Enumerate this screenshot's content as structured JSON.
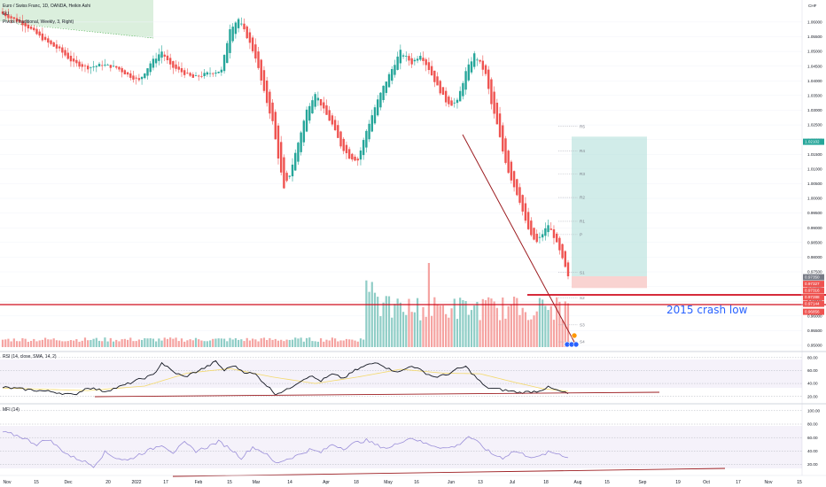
{
  "header": {
    "symbol_line": "Euro / Swiss Franc, 1D, OANDA, Heikin Ashi",
    "indicator_line": "Pivots (Traditional, Weekly, 3, Right)",
    "currency": "CHF",
    "corner_mark": "EU"
  },
  "annotation": "2015 crash low",
  "rsi_title": "RSI (14, close, SMA, 14, 2)",
  "mfi_title": "MFI (14)",
  "colors": {
    "up": "#26a69a",
    "down": "#ef5350",
    "vol_up": "#8fcdc6",
    "vol_down": "#f5a3a1",
    "rsi_line": "#131722",
    "rsi_ma": "#f4d96b",
    "mfi_line": "#9b8fd9",
    "trendline": "#9c1c20",
    "hline": "#d10d1f",
    "annotation": "#2962ff"
  },
  "chart_data": [
    {
      "type": "candlestick",
      "y_axis_ticks": [
        "1.06000",
        "1.05500",
        "1.05000",
        "1.04500",
        "1.04000",
        "1.03500",
        "1.03000",
        "1.02500",
        "1.02000",
        "1.01500",
        "1.01000",
        "1.00500",
        "1.00000",
        "0.99500",
        "0.99000",
        "0.98500",
        "0.98000",
        "0.97500",
        "0.97000",
        "0.96500",
        "0.96000",
        "0.95500",
        "0.95000"
      ],
      "ylim": [
        0.9494,
        1.0675
      ],
      "x_axis_ticks": [
        "Nov",
        "15",
        "Dec",
        "20",
        "2022",
        "17",
        "Feb",
        "15",
        "Mar",
        "14",
        "Apr",
        "18",
        "May",
        "16",
        "Jun",
        "13",
        "Jul",
        "18",
        "Aug",
        "15",
        "Sep",
        "19",
        "Oct",
        "17",
        "Nov",
        "15"
      ],
      "price_tags": [
        {
          "text": "1.02102",
          "value": 1.02102,
          "color": "#26a69a"
        },
        {
          "text": "0.97350",
          "value": 0.9735,
          "color": "#787b86"
        },
        {
          "text": "0.97327",
          "value": 0.97327,
          "color": "#ef5350"
        },
        {
          "text": "0.97316",
          "value": 0.97316,
          "color": "#ef5350"
        },
        {
          "text": "0.97288",
          "value": 0.97288,
          "color": "#ef5350"
        },
        {
          "text": "0.97144",
          "value": 0.97144,
          "color": "#ef5350"
        },
        {
          "text": "0.96856",
          "value": 0.96856,
          "color": "#ef5350"
        }
      ],
      "pivots": [
        {
          "name": "R5",
          "value": 1.0245
        },
        {
          "name": "R4",
          "value": 1.0162
        },
        {
          "name": "R3",
          "value": 1.0083
        },
        {
          "name": "R2",
          "value": 1.0003
        },
        {
          "name": "R1",
          "value": 0.9922
        },
        {
          "name": "P",
          "value": 0.9877
        },
        {
          "name": "S1",
          "value": 0.9748
        },
        {
          "name": "S2",
          "value": 0.9662
        },
        {
          "name": "S3",
          "value": 0.957
        },
        {
          "name": "S4",
          "value": 0.9512
        }
      ],
      "annotations": [
        "2015 crash low"
      ],
      "waypoints": [
        [
          0,
          1.0628
        ],
        [
          8,
          1.059
        ],
        [
          15,
          1.0535
        ],
        [
          20,
          1.0505
        ],
        [
          25,
          1.046
        ],
        [
          30,
          1.0445
        ],
        [
          35,
          1.0455
        ],
        [
          40,
          1.0445
        ],
        [
          44,
          1.042
        ],
        [
          48,
          1.04
        ],
        [
          52,
          1.046
        ],
        [
          56,
          1.05
        ],
        [
          59,
          1.045
        ],
        [
          63,
          1.043
        ],
        [
          67,
          1.041
        ],
        [
          72,
          1.0425
        ],
        [
          77,
          1.0435
        ],
        [
          80,
          1.058
        ],
        [
          83,
          1.061
        ],
        [
          86,
          1.055
        ],
        [
          89,
          1.048
        ],
        [
          92,
          1.036
        ],
        [
          95,
          1.026
        ],
        [
          97,
          1.014
        ],
        [
          99,
          1.003
        ],
        [
          101,
          1.008
        ],
        [
          104,
          1.019
        ],
        [
          107,
          1.03
        ],
        [
          110,
          1.036
        ],
        [
          113,
          1.03
        ],
        [
          116,
          1.025
        ],
        [
          119,
          1.018
        ],
        [
          122,
          1.014
        ],
        [
          125,
          1.013
        ],
        [
          128,
          1.023
        ],
        [
          131,
          1.031
        ],
        [
          134,
          1.038
        ],
        [
          137,
          1.044
        ],
        [
          140,
          1.05
        ],
        [
          142,
          1.048
        ],
        [
          144,
          1.046
        ],
        [
          147,
          1.049
        ],
        [
          150,
          1.044
        ],
        [
          153,
          1.038
        ],
        [
          156,
          1.033
        ],
        [
          158,
          1.032
        ],
        [
          160,
          1.033
        ],
        [
          163,
          1.043
        ],
        [
          166,
          1.049
        ],
        [
          168,
          1.046
        ],
        [
          170,
          1.042
        ],
        [
          172,
          1.032
        ],
        [
          174,
          1.025
        ],
        [
          176,
          1.016
        ],
        [
          178,
          1.009
        ],
        [
          180,
          1.004
        ],
        [
          182,
          0.999
        ],
        [
          184,
          0.992
        ],
        [
          186,
          0.987
        ],
        [
          188,
          0.985
        ],
        [
          190,
          0.988
        ],
        [
          192,
          0.991
        ],
        [
          194,
          0.987
        ],
        [
          196,
          0.982
        ],
        [
          199,
          0.9735
        ]
      ],
      "last_candle": {
        "open": 0.9782,
        "high": 0.979,
        "low": 0.9725,
        "close": 0.9735
      },
      "rsi_waypoints": [
        [
          0,
          34
        ],
        [
          10,
          30
        ],
        [
          18,
          27
        ],
        [
          25,
          22
        ],
        [
          30,
          34
        ],
        [
          36,
          28
        ],
        [
          42,
          36
        ],
        [
          48,
          46
        ],
        [
          53,
          53
        ],
        [
          56,
          72
        ],
        [
          60,
          58
        ],
        [
          64,
          50
        ],
        [
          68,
          58
        ],
        [
          72,
          66
        ],
        [
          75,
          74
        ],
        [
          78,
          60
        ],
        [
          81,
          68
        ],
        [
          85,
          58
        ],
        [
          89,
          54
        ],
        [
          92,
          41
        ],
        [
          96,
          24
        ],
        [
          100,
          30
        ],
        [
          104,
          42
        ],
        [
          108,
          52
        ],
        [
          112,
          44
        ],
        [
          116,
          54
        ],
        [
          120,
          48
        ],
        [
          124,
          60
        ],
        [
          128,
          68
        ],
        [
          132,
          73
        ],
        [
          136,
          62
        ],
        [
          140,
          58
        ],
        [
          144,
          68
        ],
        [
          148,
          58
        ],
        [
          152,
          50
        ],
        [
          156,
          53
        ],
        [
          160,
          62
        ],
        [
          163,
          66
        ],
        [
          166,
          52
        ],
        [
          170,
          34
        ],
        [
          176,
          30
        ],
        [
          182,
          26
        ],
        [
          188,
          28
        ],
        [
          192,
          34
        ],
        [
          196,
          28
        ],
        [
          199,
          24
        ]
      ],
      "rsi_ma_waypoints": [
        [
          0,
          33
        ],
        [
          30,
          29
        ],
        [
          50,
          36
        ],
        [
          65,
          56
        ],
        [
          80,
          63
        ],
        [
          95,
          50
        ],
        [
          110,
          40
        ],
        [
          125,
          50
        ],
        [
          140,
          62
        ],
        [
          155,
          56
        ],
        [
          168,
          55
        ],
        [
          180,
          42
        ],
        [
          190,
          32
        ],
        [
          199,
          28
        ]
      ],
      "mfi_waypoints": [
        [
          0,
          68
        ],
        [
          6,
          62
        ],
        [
          12,
          50
        ],
        [
          16,
          58
        ],
        [
          20,
          44
        ],
        [
          24,
          32
        ],
        [
          28,
          26
        ],
        [
          32,
          18
        ],
        [
          36,
          38
        ],
        [
          40,
          30
        ],
        [
          44,
          26
        ],
        [
          48,
          35
        ],
        [
          52,
          42
        ],
        [
          56,
          50
        ],
        [
          60,
          38
        ],
        [
          64,
          52
        ],
        [
          68,
          40
        ],
        [
          72,
          46
        ],
        [
          76,
          54
        ],
        [
          80,
          44
        ],
        [
          84,
          30
        ],
        [
          88,
          46
        ],
        [
          92,
          38
        ],
        [
          96,
          22
        ],
        [
          100,
          28
        ],
        [
          104,
          34
        ],
        [
          108,
          42
        ],
        [
          112,
          38
        ],
        [
          116,
          50
        ],
        [
          120,
          44
        ],
        [
          124,
          52
        ],
        [
          128,
          56
        ],
        [
          132,
          48
        ],
        [
          136,
          44
        ],
        [
          140,
          54
        ],
        [
          144,
          60
        ],
        [
          148,
          52
        ],
        [
          152,
          48
        ],
        [
          156,
          44
        ],
        [
          160,
          48
        ],
        [
          164,
          62
        ],
        [
          168,
          50
        ],
        [
          172,
          36
        ],
        [
          176,
          30
        ],
        [
          180,
          40
        ],
        [
          184,
          34
        ],
        [
          188,
          30
        ],
        [
          192,
          38
        ],
        [
          196,
          36
        ],
        [
          199,
          30
        ]
      ],
      "rsi_ylim": [
        10,
        88
      ],
      "mfi_ylim": [
        5,
        105
      ],
      "rsi_ticks": [
        "80.00",
        "60.00",
        "40.00",
        "20.00"
      ],
      "mfi_ticks": [
        "100.00",
        "80.00",
        "60.00",
        "40.00",
        "20.00"
      ]
    }
  ]
}
